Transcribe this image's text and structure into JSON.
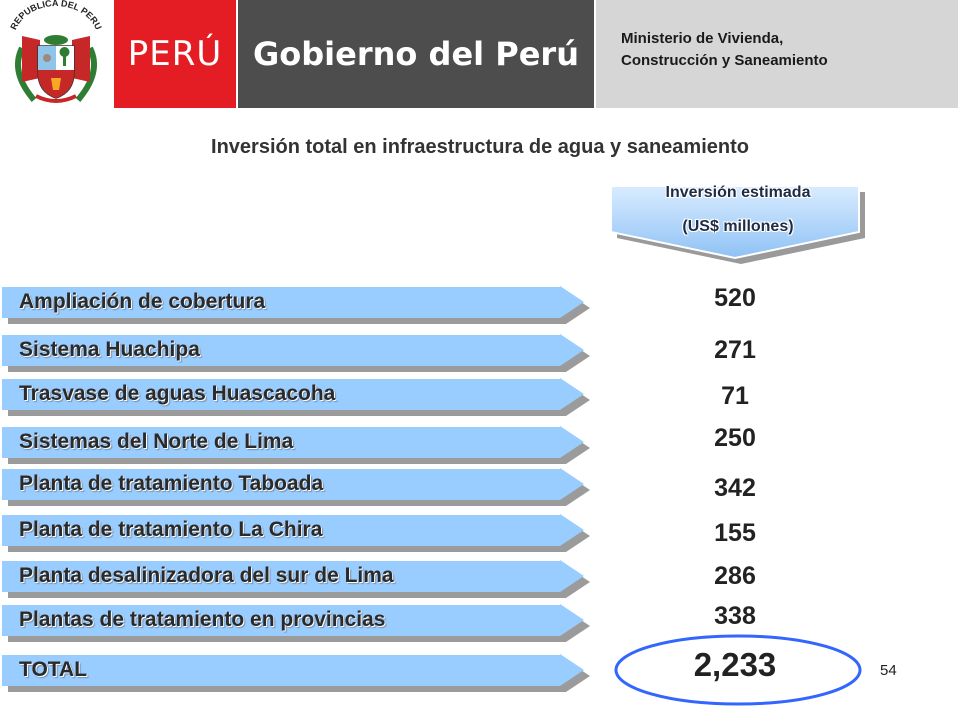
{
  "header": {
    "crest_text": "REPUBLICA DEL PERU",
    "brand": "PERÚ",
    "government": "Gobierno del Perú",
    "ministry_line1": "Ministerio de Vivienda,",
    "ministry_line2": "Construcción y Saneamiento"
  },
  "title": "Inversión total en infraestructura de agua y saneamiento",
  "column_header": {
    "line1": "Inversión estimada",
    "line2": "(US$ millones)"
  },
  "rows": [
    {
      "label": "Ampliación de cobertura",
      "value": "520"
    },
    {
      "label": "Sistema Huachipa",
      "value": "271"
    },
    {
      "label": "Trasvase de aguas Huascacoha",
      "value": "71"
    },
    {
      "label": "Sistemas del Norte de Lima",
      "value": "250"
    },
    {
      "label": "Planta de tratamiento Taboada",
      "value": "342"
    },
    {
      "label": "Planta de tratamiento La Chira",
      "value": "155"
    },
    {
      "label": "Planta desalinizadora del sur de Lima",
      "value": "286"
    },
    {
      "label": "Plantas de tratamiento en provincias",
      "value": "338"
    }
  ],
  "total": {
    "label": "TOTAL",
    "value": "2,233"
  },
  "page_number": "54",
  "colors": {
    "brand_red": "#e41c23",
    "gov_gray": "#4d4d4d",
    "bar_blue": "#99ccff",
    "highlight_ellipse": "#3366ff"
  }
}
